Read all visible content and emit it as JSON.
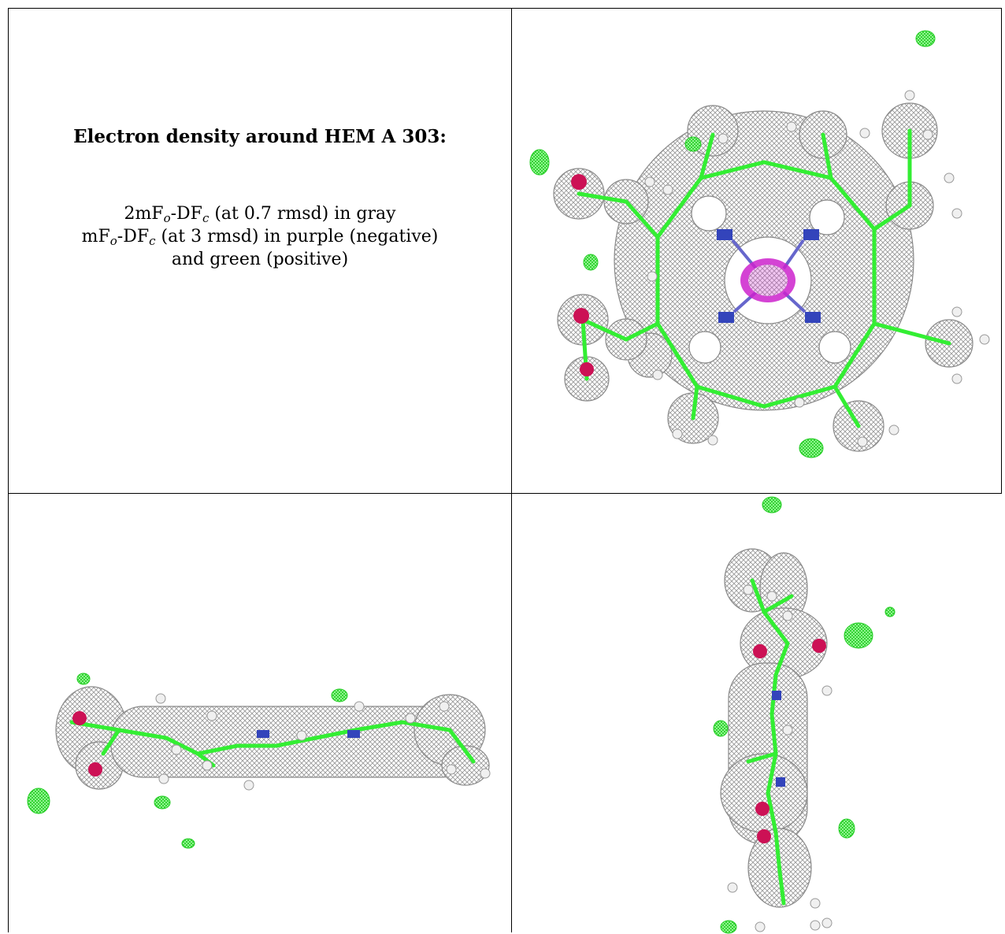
{
  "caption": {
    "title": "Electron density around HEM A 303:",
    "line1": {
      "main": "2mF",
      "sub1": "o",
      "mid": "-DF",
      "sub2": "c",
      "rest": " (at 0.7 rmsd) in gray"
    },
    "line2": {
      "main": "mF",
      "sub1": "o",
      "mid": "-DF",
      "sub2": "c",
      "rest": " (at 3 rmsd) in purple (negative)"
    },
    "line3": "and green (positive)"
  },
  "colors": {
    "mesh_gray": "#9a9a9a",
    "carbon_green": "#33ee33",
    "oxygen_red": "#cc1155",
    "nitrogen_blue": "#3344bb",
    "negative_purple": "#cc22cc",
    "hydrogen_white": "#f2f2f2"
  },
  "panels": [
    {
      "name": "top-right",
      "view": "face-on"
    },
    {
      "name": "bottom-left",
      "view": "edge-on horizontal"
    },
    {
      "name": "bottom-right",
      "view": "edge-on vertical"
    }
  ]
}
